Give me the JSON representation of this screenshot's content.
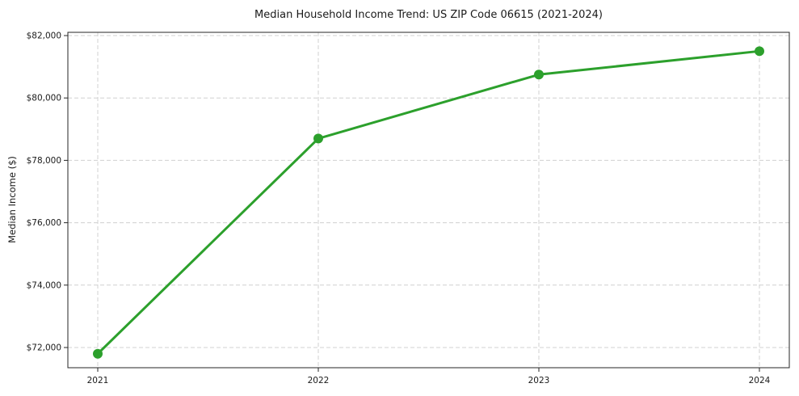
{
  "chart_data": {
    "type": "line",
    "title": "Median Household Income Trend: US ZIP Code 06615 (2021-2024)",
    "xlabel": "",
    "ylabel": "Median Income ($)",
    "x": [
      2021,
      2022,
      2023,
      2024
    ],
    "x_tick_labels": [
      "2021",
      "2022",
      "2023",
      "2024"
    ],
    "values": [
      71800,
      78700,
      80750,
      81500
    ],
    "y_ticks": [
      72000,
      74000,
      76000,
      78000,
      80000,
      82000
    ],
    "y_tick_labels": [
      "$72,000",
      "$74,000",
      "$76,000",
      "$78,000",
      "$80,000",
      "$82,000"
    ],
    "ylim": [
      71352,
      82104
    ],
    "grid": true,
    "grid_style": "dashed",
    "legend": null,
    "colors": {
      "line": "#2ca02c",
      "marker": "#2ca02c",
      "grid": "#d0d0d0",
      "axis": "#262626",
      "text": "#1a1a1a",
      "background": "#ffffff"
    }
  }
}
